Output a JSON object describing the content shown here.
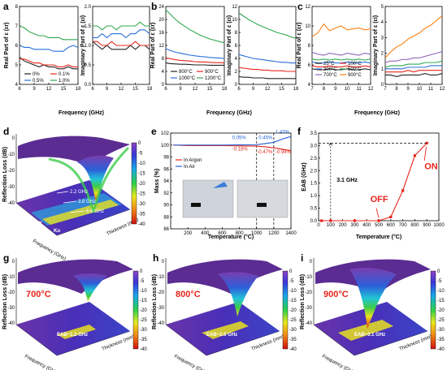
{
  "colors": {
    "black": "#222222",
    "red": "#e8241c",
    "blue": "#2a6fdb",
    "green": "#2fa84f",
    "orange": "#ff7f0e",
    "purple": "#9467bd",
    "blueline": "#1f5fd6"
  },
  "panels": {
    "a": {
      "letter": "a",
      "xlabel": "Frequency (GHz)",
      "ylabel_left": "Real Part of ε (εr)",
      "ylabel_right": "Imaginary Part of ε (εi)"
    },
    "b": {
      "letter": "b",
      "xlabel": "Frequency (GHz)",
      "ylabel_left": "Real Part of ε (εr)",
      "ylabel_right": "Imaginary Part of ε (εi)"
    },
    "c": {
      "letter": "c",
      "xlabel": "Frequency (GHz)",
      "ylabel_left": "Real Part of ε (εr)",
      "ylabel_right": "Imaginary Part of ε (εi)"
    },
    "d": {
      "letter": "d",
      "zlabel": "Reflection Loss (dB)",
      "xlabel": "Frequency (GHz)",
      "ylabel": "Thickness (mm)",
      "annotations": [
        "2.2 GHz",
        "3.8 GHz",
        "6.6 GHz"
      ],
      "bands": [
        "C",
        "X",
        "Ku"
      ]
    },
    "e": {
      "letter": "e",
      "xlabel": "Temperature (°C)",
      "ylabel": "Mass (%)",
      "annotations_blue": [
        "0.05%",
        "0.45%",
        "1.43%"
      ],
      "annotations_red": [
        "-0.18%",
        "-0.47%",
        "-0.94%"
      ]
    },
    "f": {
      "letter": "f",
      "xlabel": "Temperature (°C)",
      "ylabel": "EAB (GHz)",
      "on_label": "ON",
      "off_label": "OFF",
      "gap_label": "3.1 GHz"
    },
    "g": {
      "letter": "g",
      "temp_label": "700°C",
      "eab_label": "EAB~1.2 GHz",
      "zlabel": "Reflection Loss (dB)",
      "xlabel": "Frequency (GHz)",
      "ylabel": "Thickness (mm)"
    },
    "h": {
      "letter": "h",
      "temp_label": "800°C",
      "eab_label": "EAB~2.6 GHz",
      "zlabel": "Reflection Loss (dB)",
      "xlabel": "Frequency (GHz)",
      "ylabel": "Thickness (mm)"
    },
    "i": {
      "letter": "i",
      "temp_label": "900°C",
      "eab_label": "EAB~3.1 GHz",
      "zlabel": "Reflection Loss (dB)",
      "xlabel": "Frequency (GHz)",
      "ylabel": "Thickness (mm)"
    }
  },
  "colorbar_ticks": [
    "0",
    "-5",
    "-10",
    "-15",
    "-20",
    "-25",
    "-30",
    "-35",
    "-40"
  ],
  "chart_data": [
    {
      "id": "a-real",
      "type": "line",
      "xlim": [
        6,
        18
      ],
      "ylim": [
        4,
        8
      ],
      "xticks": [
        6,
        9,
        12,
        15,
        18
      ],
      "yticks": [
        4,
        5,
        6,
        7,
        8
      ],
      "legend": "bottom",
      "legend_title": "",
      "x": [
        6,
        7,
        8,
        9,
        10,
        11,
        12,
        13,
        14,
        15,
        16,
        17,
        18
      ],
      "series": [
        {
          "name": "0%",
          "color": "#222222",
          "values": [
            5.4,
            5.2,
            5.1,
            5.0,
            4.9,
            5.0,
            4.9,
            4.9,
            4.8,
            4.8,
            4.9,
            4.8,
            4.8
          ]
        },
        {
          "name": "0.1%",
          "color": "#e8241c",
          "values": [
            5.3,
            5.3,
            5.2,
            5.1,
            5.1,
            5.0,
            5.0,
            5.0,
            4.9,
            4.9,
            5.0,
            4.9,
            4.9
          ]
        },
        {
          "name": "0.5%",
          "color": "#2a6fdb",
          "values": [
            6.0,
            5.9,
            5.9,
            5.8,
            5.8,
            5.8,
            5.8,
            5.7,
            5.7,
            5.7,
            5.9,
            6.0,
            5.9
          ]
        },
        {
          "name": "1.0%",
          "color": "#2fa84f",
          "values": [
            7.0,
            6.9,
            6.7,
            6.6,
            6.5,
            6.5,
            6.4,
            6.4,
            6.4,
            6.3,
            6.3,
            6.3,
            6.3
          ]
        }
      ]
    },
    {
      "id": "a-imag",
      "type": "line",
      "xlim": [
        6,
        18
      ],
      "ylim": [
        0.0,
        2.0
      ],
      "xticks": [
        6,
        9,
        12,
        15,
        18
      ],
      "yticks": [
        0.0,
        0.5,
        1.0,
        1.5,
        2.0
      ],
      "x": [
        6,
        7,
        8,
        9,
        10,
        11,
        12,
        13,
        14,
        15,
        16,
        17,
        18
      ],
      "series": [
        {
          "name": "0%",
          "color": "#222222",
          "values": [
            1.1,
            1.0,
            0.9,
            1.0,
            0.9,
            0.9,
            0.9,
            0.9,
            1.0,
            0.9,
            1.0,
            1.0,
            0.9
          ]
        },
        {
          "name": "0.1%",
          "color": "#e8241c",
          "values": [
            1.1,
            1.1,
            1.0,
            1.0,
            1.1,
            1.0,
            1.0,
            1.0,
            1.0,
            1.1,
            1.0,
            1.0,
            1.0
          ]
        },
        {
          "name": "0.5%",
          "color": "#2a6fdb",
          "values": [
            1.2,
            1.2,
            1.3,
            1.2,
            1.3,
            1.3,
            1.3,
            1.2,
            1.3,
            1.3,
            1.4,
            1.4,
            1.3
          ]
        },
        {
          "name": "1.0%",
          "color": "#2fa84f",
          "values": [
            1.5,
            1.5,
            1.4,
            1.5,
            1.5,
            1.4,
            1.5,
            1.5,
            1.5,
            1.5,
            1.6,
            1.5,
            1.5
          ]
        }
      ]
    },
    {
      "id": "b-real",
      "type": "line",
      "xlim": [
        6,
        18
      ],
      "ylim": [
        0,
        24
      ],
      "xticks": [
        6,
        9,
        12,
        15,
        18
      ],
      "yticks": [
        0,
        4,
        8,
        12,
        16,
        20,
        24
      ],
      "legend": "bottom",
      "x": [
        6,
        7,
        8,
        9,
        10,
        11,
        12,
        13,
        14,
        15,
        16,
        17,
        18
      ],
      "series": [
        {
          "name": "800°C",
          "color": "#222222",
          "values": [
            6.6,
            6.4,
            6.3,
            6.2,
            6.2,
            6.1,
            6.0,
            6.0,
            6.0,
            5.9,
            5.9,
            5.9,
            5.9
          ]
        },
        {
          "name": "900°C",
          "color": "#e8241c",
          "values": [
            8.2,
            7.9,
            7.6,
            7.4,
            7.3,
            7.2,
            7.0,
            6.9,
            6.9,
            6.8,
            6.7,
            6.7,
            6.6
          ]
        },
        {
          "name": "1000°C",
          "color": "#2a6fdb",
          "values": [
            11.0,
            10.4,
            9.9,
            9.6,
            9.3,
            9.0,
            8.8,
            8.6,
            8.5,
            8.3,
            8.2,
            8.1,
            8.0
          ]
        },
        {
          "name": "1200°C",
          "color": "#2fa84f",
          "values": [
            23.0,
            21.5,
            20.0,
            18.8,
            17.8,
            16.8,
            16.0,
            15.2,
            14.6,
            14.0,
            13.6,
            13.2,
            12.8
          ]
        }
      ]
    },
    {
      "id": "b-imag",
      "type": "line",
      "xlim": [
        6,
        18
      ],
      "ylim": [
        0,
        12
      ],
      "xticks": [
        6,
        9,
        12,
        15,
        18
      ],
      "yticks": [
        0,
        2,
        4,
        6,
        8,
        10,
        12
      ],
      "x": [
        6,
        7,
        8,
        9,
        10,
        11,
        12,
        13,
        14,
        15,
        16,
        17,
        18
      ],
      "series": [
        {
          "name": "800°C",
          "color": "#222222",
          "values": [
            1.2,
            1.1,
            1.1,
            1.0,
            1.0,
            1.0,
            0.9,
            0.9,
            0.9,
            0.9,
            0.9,
            0.9,
            0.9
          ]
        },
        {
          "name": "900°C",
          "color": "#e8241c",
          "values": [
            2.6,
            2.5,
            2.4,
            2.3,
            2.3,
            2.2,
            2.2,
            2.1,
            2.1,
            2.1,
            2.0,
            2.0,
            2.0
          ]
        },
        {
          "name": "1000°C",
          "color": "#2a6fdb",
          "values": [
            4.6,
            4.4,
            4.2,
            4.0,
            3.9,
            3.8,
            3.7,
            3.6,
            3.5,
            3.4,
            3.4,
            3.3,
            3.3
          ]
        },
        {
          "name": "1200°C",
          "color": "#2fa84f",
          "values": [
            11.0,
            10.5,
            10.0,
            9.6,
            9.2,
            8.9,
            8.6,
            8.3,
            8.0,
            7.8,
            7.6,
            7.3,
            7.1
          ]
        }
      ]
    },
    {
      "id": "c-real",
      "type": "line",
      "xlim": [
        7,
        12
      ],
      "ylim": [
        4,
        12
      ],
      "xticks": [
        7,
        8,
        9,
        10,
        11,
        12
      ],
      "yticks": [
        4,
        6,
        8,
        10,
        12
      ],
      "legend": "bottom",
      "x": [
        7,
        7.5,
        8,
        8.5,
        9,
        9.5,
        10,
        10.5,
        11,
        11.5,
        12
      ],
      "series": [
        {
          "name": "25°C",
          "color": "#222222",
          "values": [
            5.6,
            5.5,
            5.5,
            5.6,
            5.5,
            5.5,
            5.6,
            5.5,
            5.5,
            5.6,
            5.5
          ]
        },
        {
          "name": "100°C",
          "color": "#e8241c",
          "values": [
            5.9,
            5.8,
            5.8,
            5.9,
            5.8,
            5.8,
            5.9,
            5.8,
            5.8,
            5.9,
            5.8
          ]
        },
        {
          "name": "300°C",
          "color": "#2a6fdb",
          "values": [
            6.3,
            6.2,
            6.2,
            6.3,
            6.2,
            6.2,
            6.3,
            6.2,
            6.2,
            6.3,
            6.2
          ]
        },
        {
          "name": "500°C",
          "color": "#2fa84f",
          "values": [
            6.6,
            6.5,
            6.6,
            6.5,
            6.6,
            6.5,
            6.6,
            6.5,
            6.6,
            6.5,
            6.6
          ]
        },
        {
          "name": "700°C",
          "color": "#9467bd",
          "values": [
            7.3,
            7.1,
            7.0,
            7.2,
            7.1,
            7.0,
            7.2,
            7.1,
            7.0,
            7.2,
            7.1
          ]
        },
        {
          "name": "900°C",
          "color": "#ff7f0e",
          "values": [
            8.9,
            9.3,
            10.2,
            9.5,
            9.8,
            10.0,
            9.6,
            9.7,
            9.8,
            9.6,
            9.7
          ]
        }
      ]
    },
    {
      "id": "c-imag",
      "type": "line",
      "xlim": [
        7,
        12
      ],
      "ylim": [
        0,
        5
      ],
      "xticks": [
        7,
        8,
        9,
        10,
        11,
        12
      ],
      "yticks": [
        0,
        1,
        2,
        3,
        4,
        5
      ],
      "x": [
        7,
        7.5,
        8,
        8.5,
        9,
        9.5,
        10,
        10.5,
        11,
        11.5,
        12
      ],
      "series": [
        {
          "name": "25°C",
          "color": "#222222",
          "values": [
            0.6,
            0.6,
            0.5,
            0.6,
            0.6,
            0.6,
            0.6,
            0.7,
            0.6,
            0.6,
            0.7
          ]
        },
        {
          "name": "100°C",
          "color": "#e8241c",
          "values": [
            0.8,
            0.8,
            0.8,
            0.8,
            0.9,
            0.8,
            0.9,
            0.9,
            0.9,
            0.9,
            0.9
          ]
        },
        {
          "name": "300°C",
          "color": "#2a6fdb",
          "values": [
            1.0,
            1.0,
            1.0,
            1.0,
            1.1,
            1.1,
            1.1,
            1.1,
            1.2,
            1.2,
            1.2
          ]
        },
        {
          "name": "500°C",
          "color": "#2fa84f",
          "values": [
            1.1,
            1.2,
            1.2,
            1.2,
            1.3,
            1.3,
            1.3,
            1.4,
            1.4,
            1.4,
            1.5
          ]
        },
        {
          "name": "700°C",
          "color": "#9467bd",
          "values": [
            1.4,
            1.5,
            1.5,
            1.6,
            1.6,
            1.7,
            1.7,
            1.8,
            1.9,
            2.0,
            2.1
          ]
        },
        {
          "name": "900°C",
          "color": "#ff7f0e",
          "values": [
            1.7,
            2.1,
            2.4,
            2.6,
            2.9,
            3.1,
            3.3,
            3.6,
            3.8,
            4.1,
            4.4
          ]
        }
      ]
    },
    {
      "id": "e-tga",
      "type": "line",
      "xlim": [
        0,
        1400
      ],
      "ylim": [
        86,
        102
      ],
      "xticks": [
        200,
        400,
        600,
        800,
        1000,
        1200,
        1400
      ],
      "yticks": [
        86,
        88,
        90,
        92,
        94,
        96,
        98,
        100,
        102
      ],
      "legend": "left",
      "x": [
        30,
        200,
        400,
        600,
        800,
        1000,
        1100,
        1200,
        1300,
        1400
      ],
      "series": [
        {
          "name": "In Argon",
          "color": "#e8241c",
          "values": [
            100.0,
            99.9,
            99.9,
            99.9,
            99.85,
            99.82,
            99.7,
            99.53,
            99.3,
            99.06
          ]
        },
        {
          "name": "In Air",
          "color": "#1f5fd6",
          "values": [
            100.0,
            100.0,
            100.0,
            100.0,
            100.02,
            100.05,
            100.25,
            100.45,
            101.0,
            101.43
          ]
        }
      ],
      "vlines": [
        1000,
        1200
      ]
    },
    {
      "id": "f-eab",
      "type": "line",
      "xlim": [
        0,
        1000
      ],
      "ylim": [
        0,
        3.5
      ],
      "xticks": [
        0,
        100,
        200,
        300,
        400,
        500,
        600,
        700,
        800,
        900,
        1000
      ],
      "yticks": [
        0.0,
        0.5,
        1.0,
        1.5,
        2.0,
        2.5,
        3.0,
        3.5
      ],
      "series": [
        {
          "name": "",
          "color": "#e8241c",
          "x": [
            25,
            100,
            300,
            500,
            600,
            700,
            800,
            900
          ],
          "values": [
            0.0,
            0.0,
            0.0,
            0.0,
            0.15,
            1.2,
            2.6,
            3.1
          ]
        }
      ]
    }
  ]
}
